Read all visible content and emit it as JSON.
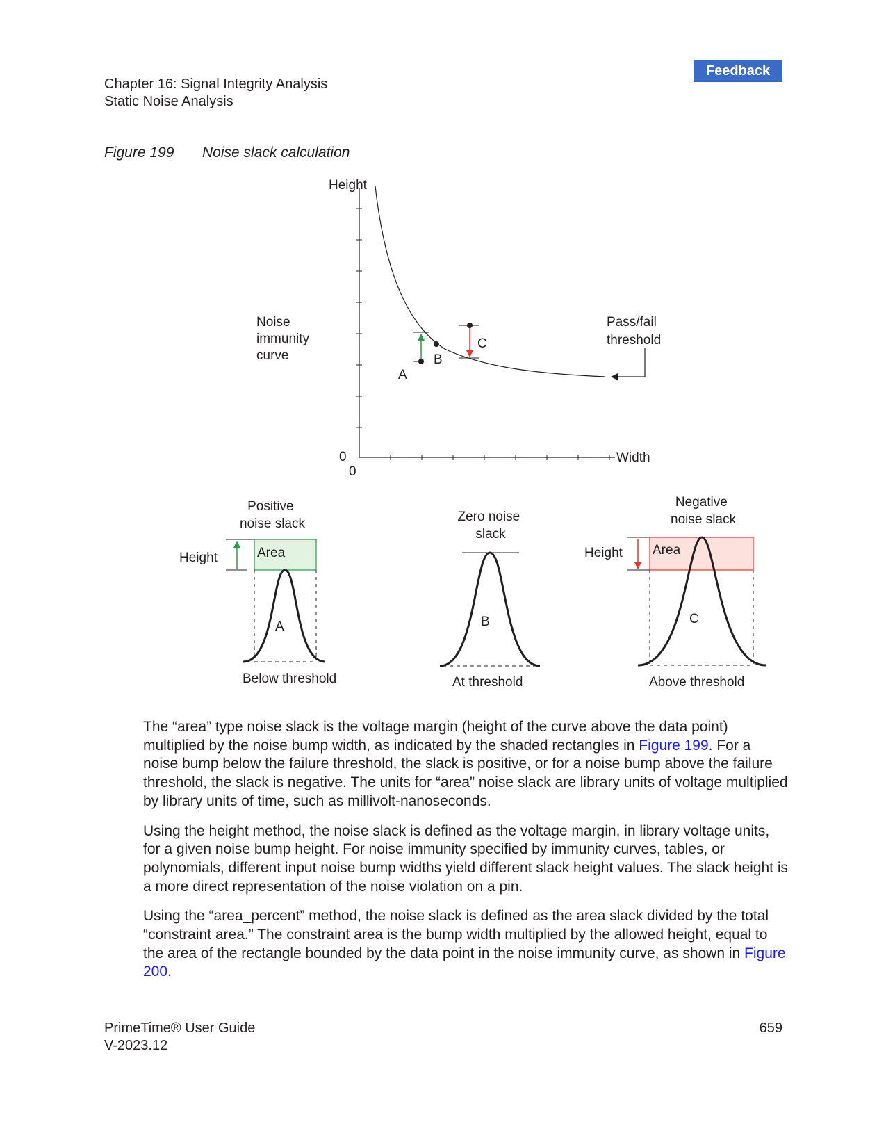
{
  "header": {
    "feedback_label": "Feedback",
    "chapter": "Chapter 16: Signal Integrity Analysis",
    "section": "Static Noise Analysis"
  },
  "figure": {
    "number": "Figure 199",
    "title": "Noise slack calculation",
    "curve_plot": {
      "y_axis_label": "Height",
      "x_axis_label": "Width",
      "y_origin": "0",
      "x_origin": "0",
      "curve_label": [
        "Noise",
        "immunity",
        "curve"
      ],
      "threshold_label": [
        "Pass/fail",
        "threshold"
      ],
      "point_a": "A",
      "point_b": "B",
      "point_c": "C"
    },
    "panels": {
      "positive": {
        "title": [
          "Positive",
          "noise slack"
        ],
        "height_label": "Height",
        "area_label": "Area",
        "bump_label": "A",
        "caption": "Below threshold"
      },
      "zero": {
        "title": [
          "Zero noise",
          "slack"
        ],
        "bump_label": "B",
        "caption": "At threshold"
      },
      "negative": {
        "title": [
          "Negative",
          "noise slack"
        ],
        "height_label": "Height",
        "area_label": "Area",
        "bump_label": "C",
        "caption": "Above threshold"
      }
    },
    "colors": {
      "positive_fill": "#e2f3e2",
      "positive_stroke": "#2a9a48",
      "negative_fill": "#fde1dc",
      "negative_stroke": "#e8332e",
      "link": "#1a1aff",
      "feedback_bg": "#3a6bc7"
    }
  },
  "body": {
    "p1_a": "The “area” type noise slack is the voltage margin (height of the curve above the data point) multiplied by the noise bump width, as indicated by the shaded rectangles in ",
    "p1_link": "Figure 199",
    "p1_b": ". For a noise bump below the failure threshold, the slack is positive, or for a noise bump above the failure threshold, the slack is negative. The units for “area” noise slack are library units of voltage multiplied by library units of time, such as millivolt-nanoseconds.",
    "p2": "Using the height method, the noise slack is defined as the voltage margin, in library voltage units, for a given noise bump height. For noise immunity specified by immunity curves, tables, or polynomials, different input noise bump widths yield different slack height values. The slack height is a more direct representation of the noise violation on a pin.",
    "p3_a": "Using the “area_percent” method, the noise slack is defined as the area slack divided by the total “constraint area.” The constraint area is the bump width multiplied by the allowed height, equal to the area of the rectangle bounded by the data point in the noise immunity curve, as shown in ",
    "p3_link": "Figure 200",
    "p3_b": "."
  },
  "footer": {
    "product": "PrimeTime® User Guide",
    "version": "V-2023.12",
    "page_number": "659"
  }
}
